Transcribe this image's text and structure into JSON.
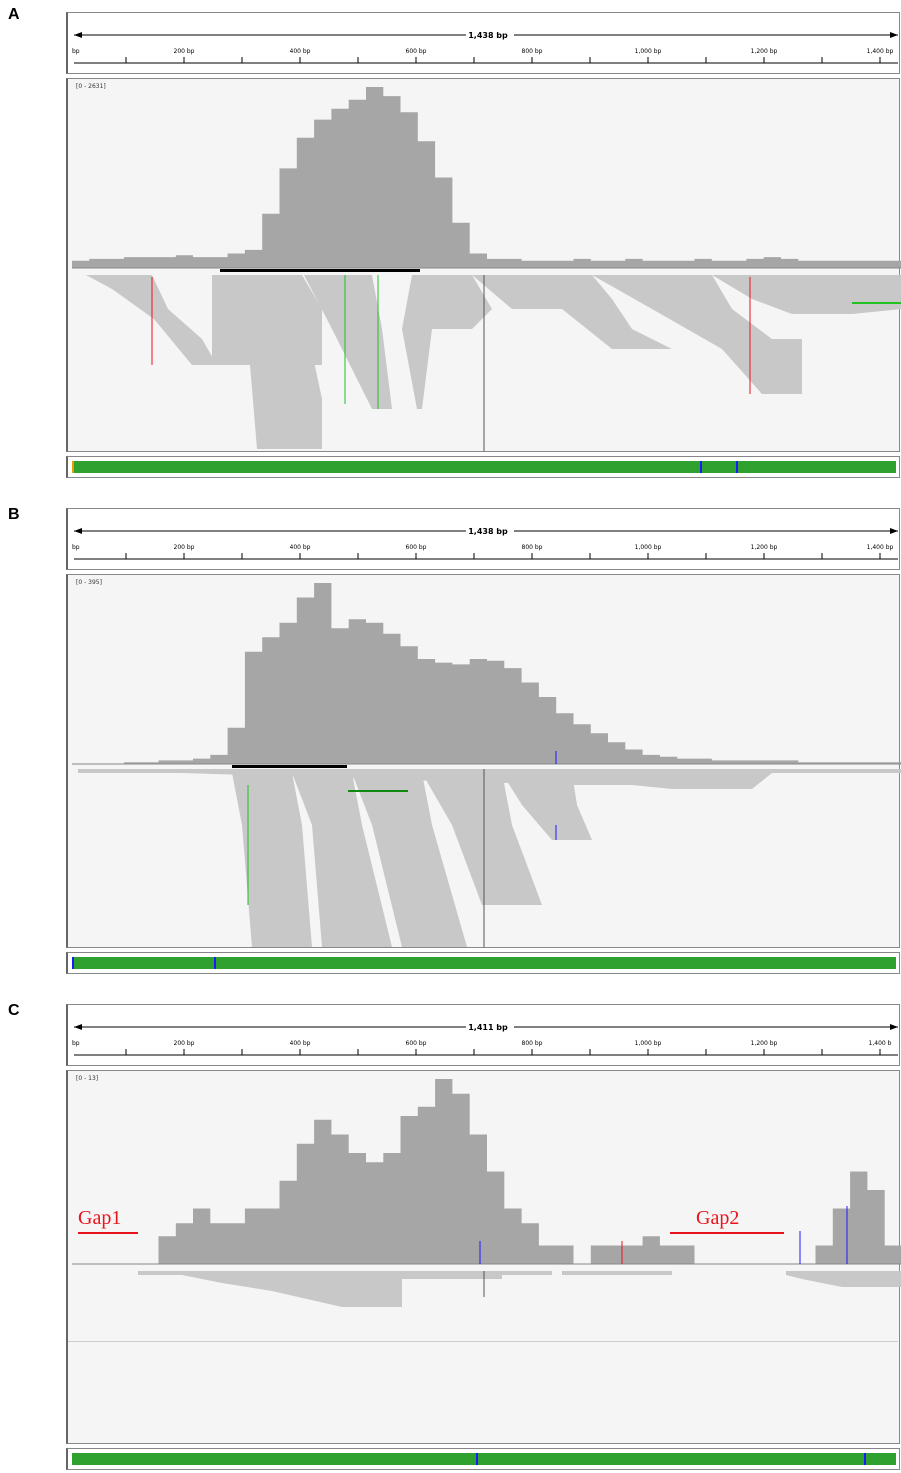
{
  "panels": [
    {
      "letter": "A",
      "span_label": "1,438 bp",
      "ticks": [
        "200 bp",
        "400 bp",
        "600 bp",
        "800 bp",
        "1,000 bp",
        "1,200 bp",
        "1,400 bp"
      ],
      "partial_left_tick": "bp",
      "range_label": "[0 - 2631]",
      "coverage_profile": [
        0.04,
        0.05,
        0.05,
        0.06,
        0.06,
        0.06,
        0.07,
        0.06,
        0.06,
        0.08,
        0.1,
        0.3,
        0.55,
        0.72,
        0.82,
        0.88,
        0.93,
        1.0,
        0.95,
        0.86,
        0.7,
        0.5,
        0.25,
        0.08,
        0.05,
        0.05,
        0.04,
        0.04,
        0.04,
        0.05,
        0.04,
        0.04,
        0.05,
        0.04,
        0.04,
        0.04,
        0.05,
        0.04,
        0.04,
        0.05,
        0.06,
        0.05,
        0.04,
        0.04,
        0.04,
        0.04,
        0.04,
        0.04
      ],
      "colors": {
        "coverage": "#a6a6a6",
        "reads": "#c8c8c8",
        "mismatch_red": "#e8141b",
        "mismatch_green": "#22c022"
      }
    },
    {
      "letter": "B",
      "span_label": "1,438 bp",
      "ticks": [
        "200 bp",
        "400 bp",
        "600 bp",
        "800 bp",
        "1,000 bp",
        "1,200 bp",
        "1,400 bp"
      ],
      "partial_left_tick": "bp",
      "range_label": "[0 - 395]",
      "coverage_profile": [
        0.0,
        0.0,
        0.0,
        0.01,
        0.01,
        0.02,
        0.02,
        0.03,
        0.05,
        0.2,
        0.62,
        0.7,
        0.78,
        0.92,
        1.0,
        0.75,
        0.8,
        0.78,
        0.72,
        0.65,
        0.58,
        0.56,
        0.55,
        0.58,
        0.57,
        0.53,
        0.45,
        0.37,
        0.28,
        0.22,
        0.17,
        0.12,
        0.08,
        0.05,
        0.04,
        0.03,
        0.03,
        0.02,
        0.02,
        0.02,
        0.02,
        0.02,
        0.01,
        0.01,
        0.01,
        0.01,
        0.01,
        0.01
      ],
      "colors": {
        "coverage": "#a6a6a6",
        "reads": "#c8c8c8",
        "mismatch_blue": "#1a1aff",
        "mismatch_green": "#22c022"
      }
    },
    {
      "letter": "C",
      "span_label": "1,411 bp",
      "ticks": [
        "200 bp",
        "400 bp",
        "600 bp",
        "800 bp",
        "1,000 bp",
        "1,200 bp",
        "1,400 b"
      ],
      "partial_left_tick": "bp",
      "range_label": "[0 - 13]",
      "coverage_profile": [
        0.0,
        0.0,
        0.0,
        0.0,
        0.0,
        0.15,
        0.22,
        0.3,
        0.22,
        0.22,
        0.3,
        0.3,
        0.45,
        0.65,
        0.78,
        0.7,
        0.6,
        0.55,
        0.6,
        0.8,
        0.85,
        1.0,
        0.92,
        0.7,
        0.5,
        0.3,
        0.22,
        0.1,
        0.1,
        0.0,
        0.1,
        0.1,
        0.1,
        0.15,
        0.1,
        0.1,
        0.0,
        0.0,
        0.0,
        0.0,
        0.0,
        0.0,
        0.0,
        0.1,
        0.3,
        0.5,
        0.4,
        0.1
      ],
      "gaps": [
        {
          "label": "Gap1"
        },
        {
          "label": "Gap2"
        }
      ],
      "colors": {
        "coverage": "#a6a6a6",
        "reads": "#c8c8c8",
        "gap_line": "#e8141b"
      }
    }
  ]
}
